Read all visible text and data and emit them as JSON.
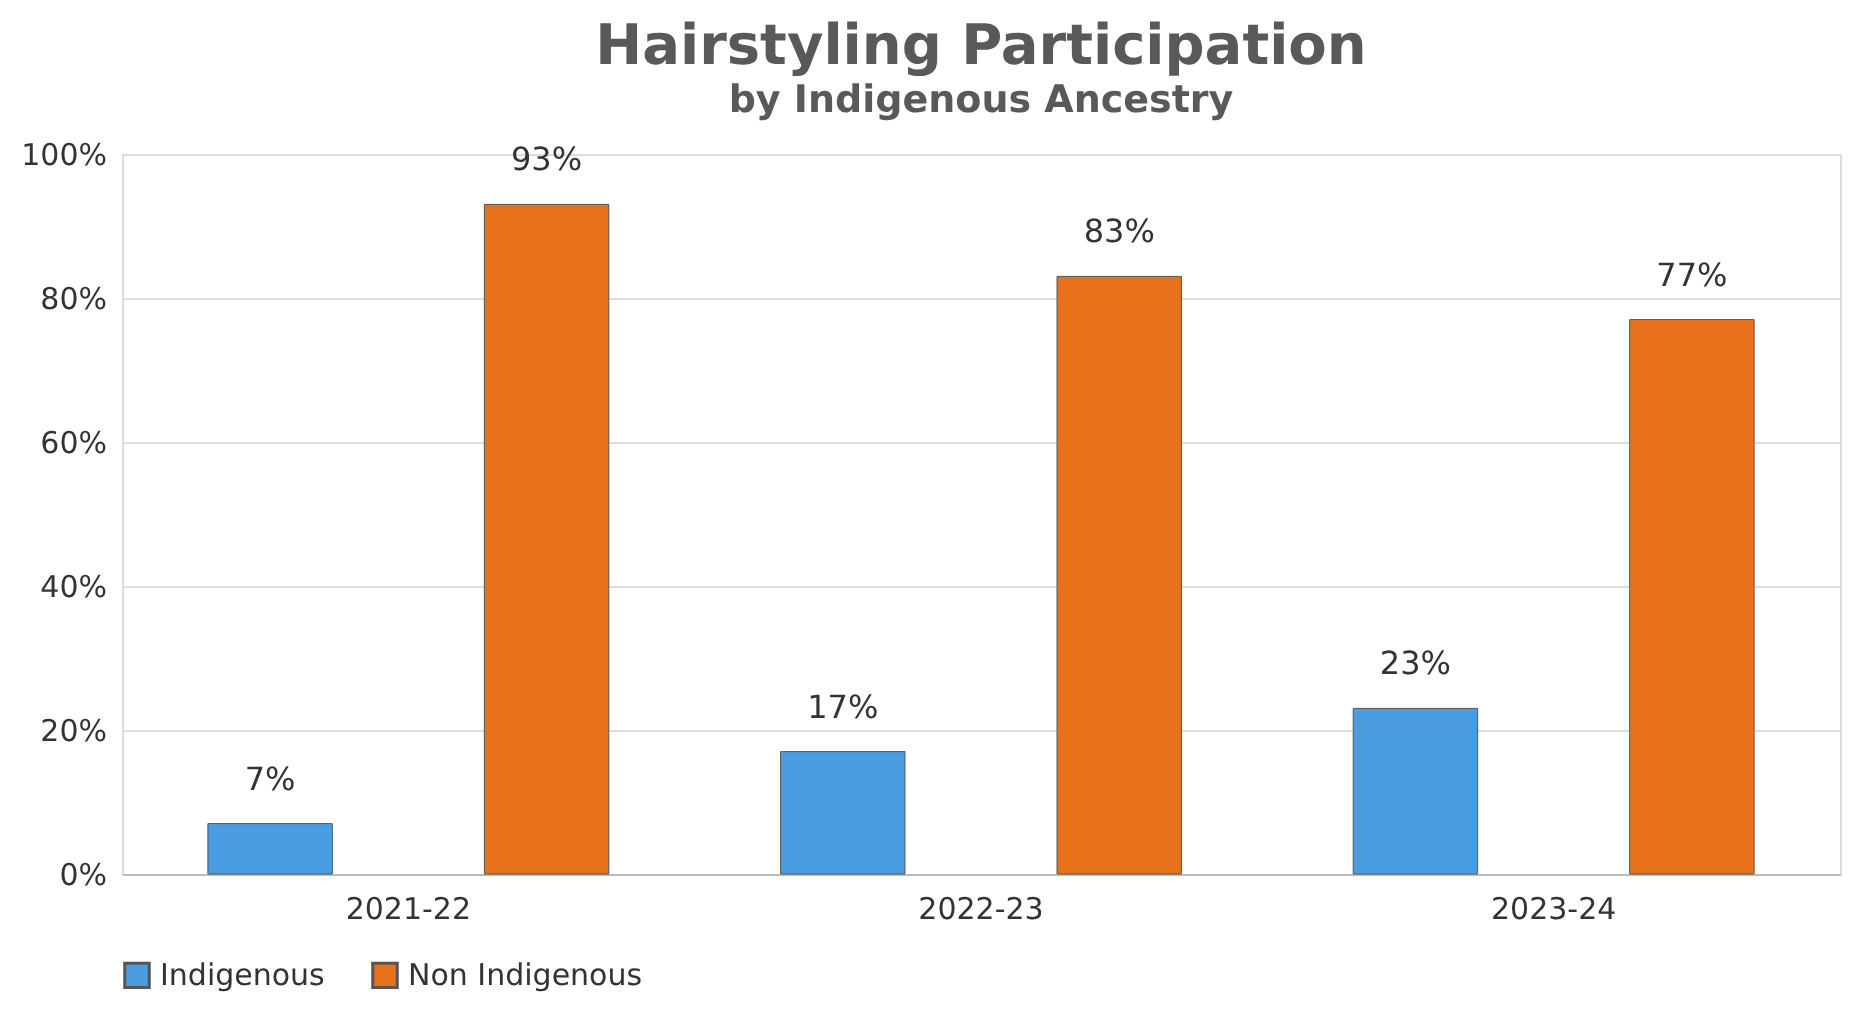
{
  "chart_data": {
    "type": "bar",
    "title": "Hairstyling Participation",
    "subtitle": "by Indigenous Ancestry",
    "categories": [
      "2021-22",
      "2022-23",
      "2023-24"
    ],
    "series": [
      {
        "name": "Indigenous",
        "color": "#4a9de0",
        "values": [
          7,
          17,
          23
        ],
        "value_labels": [
          "7%",
          "17%",
          "23%"
        ]
      },
      {
        "name": "Non Indigenous",
        "color": "#e8721c",
        "values": [
          93,
          83,
          77
        ],
        "value_labels": [
          "93%",
          "83%",
          "77%"
        ]
      }
    ],
    "ylim": [
      0,
      100
    ],
    "yticks": [
      {
        "value": 0,
        "label": "0%"
      },
      {
        "value": 20,
        "label": "20%"
      },
      {
        "value": 40,
        "label": "40%"
      },
      {
        "value": 60,
        "label": "60%"
      },
      {
        "value": 80,
        "label": "80%"
      },
      {
        "value": 100,
        "label": "100%"
      }
    ],
    "grid": "y",
    "legend": "bottom"
  }
}
